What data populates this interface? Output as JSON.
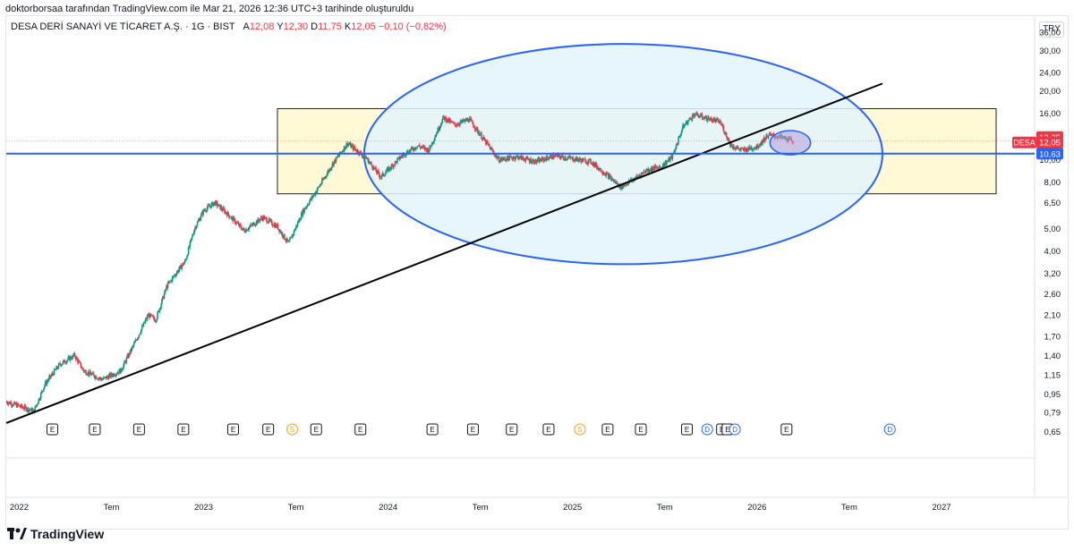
{
  "caption": "doktorborsaa tarafından TradingView.com ile Mar 21, 2026 12:36 UTC+3 tarihinde oluşturuldu",
  "symbol": {
    "name": "DESA DERİ SANAYİ VE TİCARET A.Ş. · 1G · BIST",
    "open_label": "A",
    "open": "12,08",
    "high_label": "Y",
    "high": "12,30",
    "low_label": "D",
    "low": "11,75",
    "close_label": "K",
    "close": "12,05",
    "change": "−0,10 (−0,82%)"
  },
  "currency": "TRY",
  "brand": "TradingView",
  "colors": {
    "up": "#089981",
    "down": "#f23645",
    "ellipse_stroke": "#2962ff",
    "ellipse_fill": "#e3f5fb",
    "rect_fill": "#fff9d6",
    "hline": "#2962ff",
    "trendline": "#000000"
  },
  "chart_data": {
    "type": "candlestick",
    "scale": "log",
    "title": "DESA DERİ SANAYİ VE TİCARET A.Ş. · 1G · BIST",
    "y_ticks": [
      "36,00",
      "30,00",
      "24,00",
      "20,00",
      "16,00",
      "10,00",
      "8,00",
      "6,50",
      "5,00",
      "4,00",
      "3,20",
      "2,60",
      "2,10",
      "1,70",
      "1,40",
      "1,15",
      "0,95",
      "0,79",
      "0,65"
    ],
    "y_tick_values": [
      36,
      30,
      24,
      20,
      16,
      10,
      8,
      6.5,
      5,
      4,
      3.2,
      2.6,
      2.1,
      1.7,
      1.4,
      1.15,
      0.95,
      0.79,
      0.65
    ],
    "ylim": [
      0.62,
      38
    ],
    "x_ticks": [
      "2022",
      "Tem",
      "2023",
      "Tem",
      "2024",
      "Tem",
      "2025",
      "Tem",
      "2026",
      "Tem",
      "2027"
    ],
    "x_tick_values": [
      2022.0,
      2022.5,
      2023.0,
      2023.5,
      2024.0,
      2024.5,
      2025.0,
      2025.5,
      2026.0,
      2026.5,
      2027.0
    ],
    "xlim": [
      2021.93,
      2027.5
    ],
    "price_path": [
      [
        2021.93,
        0.88
      ],
      [
        2022.08,
        0.8
      ],
      [
        2022.14,
        1.05
      ],
      [
        2022.22,
        1.28
      ],
      [
        2022.3,
        1.4
      ],
      [
        2022.35,
        1.2
      ],
      [
        2022.45,
        1.1
      ],
      [
        2022.55,
        1.2
      ],
      [
        2022.62,
        1.55
      ],
      [
        2022.7,
        2.1
      ],
      [
        2022.74,
        2.0
      ],
      [
        2022.8,
        2.8
      ],
      [
        2022.85,
        3.2
      ],
      [
        2022.9,
        3.6
      ],
      [
        2022.95,
        5.0
      ],
      [
        2023.0,
        6.0
      ],
      [
        2023.06,
        6.5
      ],
      [
        2023.12,
        5.9
      ],
      [
        2023.22,
        4.9
      ],
      [
        2023.32,
        5.6
      ],
      [
        2023.4,
        5.1
      ],
      [
        2023.46,
        4.3
      ],
      [
        2023.54,
        6.0
      ],
      [
        2023.62,
        7.5
      ],
      [
        2023.7,
        9.6
      ],
      [
        2023.78,
        11.8
      ],
      [
        2023.84,
        10.8
      ],
      [
        2023.88,
        10.2
      ],
      [
        2023.96,
        8.4
      ],
      [
        2024.08,
        10.5
      ],
      [
        2024.16,
        11.5
      ],
      [
        2024.22,
        11.0
      ],
      [
        2024.3,
        15.3
      ],
      [
        2024.36,
        14.2
      ],
      [
        2024.44,
        15.0
      ],
      [
        2024.52,
        12.2
      ],
      [
        2024.6,
        10.0
      ],
      [
        2024.7,
        10.3
      ],
      [
        2024.8,
        9.8
      ],
      [
        2024.9,
        10.4
      ],
      [
        2025.0,
        10.1
      ],
      [
        2025.1,
        9.8
      ],
      [
        2025.2,
        8.4
      ],
      [
        2025.26,
        7.6
      ],
      [
        2025.34,
        8.3
      ],
      [
        2025.4,
        9.0
      ],
      [
        2025.48,
        9.3
      ],
      [
        2025.54,
        10.3
      ],
      [
        2025.6,
        14.0
      ],
      [
        2025.66,
        15.8
      ],
      [
        2025.72,
        15.2
      ],
      [
        2025.8,
        14.6
      ],
      [
        2025.86,
        11.5
      ],
      [
        2025.92,
        11.0
      ],
      [
        2026.0,
        11.4
      ],
      [
        2026.06,
        12.8
      ],
      [
        2026.12,
        12.6
      ],
      [
        2026.2,
        12.05
      ]
    ],
    "horizontal_line": {
      "value": 10.63,
      "label": "10,63"
    },
    "price_labels": {
      "high": "12,25",
      "last": "12,05",
      "symbol": "DESA"
    },
    "rectangle": {
      "x0": 2023.4,
      "x1": 2027.5,
      "y0": 7.1,
      "y1": 16.7
    },
    "ellipse": {
      "x0": 2023.87,
      "x1": 2026.68,
      "y0": 3.5,
      "y1": 32.0
    },
    "small_ellipse": {
      "x0": 2026.07,
      "x1": 2026.29,
      "y0": 10.5,
      "y1": 13.4
    },
    "trendline": {
      "x0": 2021.93,
      "y0": 0.71,
      "x1": 2026.68,
      "y1": 21.5
    },
    "events": [
      {
        "t": "E",
        "x": 2022.18
      },
      {
        "t": "E",
        "x": 2022.41
      },
      {
        "t": "E",
        "x": 2022.65
      },
      {
        "t": "E",
        "x": 2022.89
      },
      {
        "t": "E",
        "x": 2023.16
      },
      {
        "t": "E",
        "x": 2023.35
      },
      {
        "t": "S",
        "x": 2023.48
      },
      {
        "t": "E",
        "x": 2023.61
      },
      {
        "t": "E",
        "x": 2023.85
      },
      {
        "t": "E",
        "x": 2024.24
      },
      {
        "t": "E",
        "x": 2024.46
      },
      {
        "t": "E",
        "x": 2024.67
      },
      {
        "t": "E",
        "x": 2024.87
      },
      {
        "t": "S",
        "x": 2025.04
      },
      {
        "t": "E",
        "x": 2025.19
      },
      {
        "t": "E",
        "x": 2025.37
      },
      {
        "t": "E",
        "x": 2025.62
      },
      {
        "t": "D",
        "x": 2025.73
      },
      {
        "t": "E",
        "x": 2025.81
      },
      {
        "t": "E",
        "x": 2025.84
      },
      {
        "t": "D",
        "x": 2025.88
      },
      {
        "t": "E",
        "x": 2026.16
      },
      {
        "t": "D",
        "x": 2026.72
      }
    ]
  }
}
